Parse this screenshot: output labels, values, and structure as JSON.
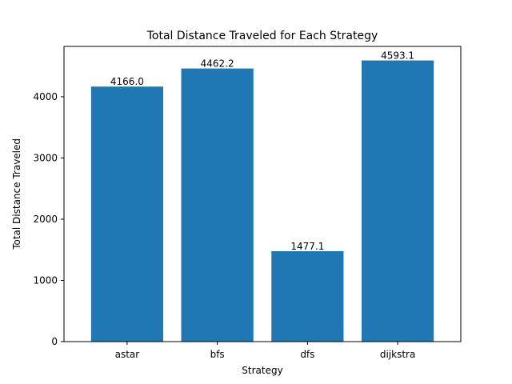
{
  "chart_data": {
    "type": "bar",
    "title": "Total Distance Traveled for Each Strategy",
    "xlabel": "Strategy",
    "ylabel": "Total Distance Traveled",
    "categories": [
      "astar",
      "bfs",
      "dfs",
      "dijkstra"
    ],
    "values": [
      4166.0,
      4462.2,
      1477.1,
      4593.1
    ],
    "data_labels": [
      "4166.0",
      "4462.2",
      "1477.1",
      "4593.1"
    ],
    "ylim": [
      0,
      4822.755
    ],
    "yticks": [
      0,
      1000,
      2000,
      3000,
      4000
    ],
    "ytick_labels": [
      "0",
      "1000",
      "2000",
      "3000",
      "4000"
    ],
    "grid": false,
    "legend": "none",
    "colors": {
      "bar": "#1f77b4",
      "axis": "#000000",
      "background": "#ffffff"
    }
  }
}
